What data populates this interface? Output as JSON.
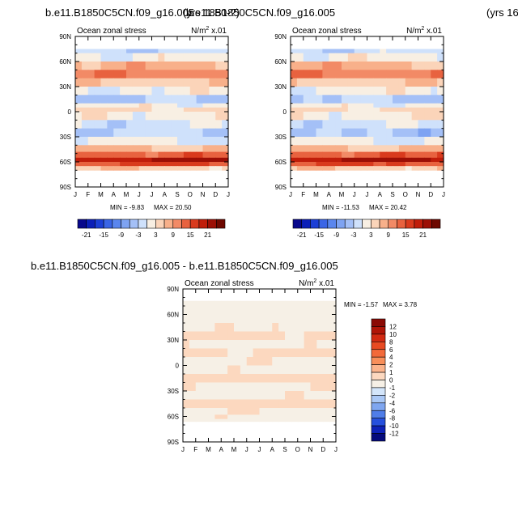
{
  "chart_data": [
    {
      "type": "heatmap",
      "title": "b.e11.B1850C5CN.f09_g16.005",
      "title_overlap": "(yrs 1850-?)",
      "subtitle_left": "Ocean zonal stress",
      "units": "N/m",
      "units_exp": "2",
      "units_scale": " x.01",
      "x_ticks": [
        "J",
        "F",
        "M",
        "A",
        "M",
        "J",
        "J",
        "A",
        "S",
        "O",
        "N",
        "D",
        "J"
      ],
      "y_ticks": [
        "90N",
        "60N",
        "30N",
        "0",
        "30S",
        "60S",
        "90S"
      ],
      "ylim": [
        -90,
        90
      ],
      "min_label": "MIN = ",
      "min": "-9.83",
      "max_label": "MAX = ",
      "max": "20.50",
      "contour_levels": [
        -24,
        -21,
        -18,
        -15,
        -12,
        -9,
        -6,
        -3,
        0,
        3,
        6,
        9,
        12,
        15,
        18,
        21,
        24
      ],
      "colorbar_labels": [
        "-21",
        "-15",
        "-9",
        "-3",
        "3",
        "9",
        "15",
        "21"
      ],
      "colors": [
        "#08088c",
        "#0b1fb8",
        "#1c3fd6",
        "#3a65e6",
        "#5a86ee",
        "#7ea3f2",
        "#a4c0f7",
        "#cfe1fb",
        "#f8efe3",
        "#fbd4b9",
        "#f8b08a",
        "#f28a66",
        "#e8623f",
        "#d93a1d",
        "#c01d0a",
        "#9c0f05",
        "#6e0800"
      ],
      "bands": [
        {
          "lat": 90,
          "value": null
        },
        {
          "lat": 80,
          "value": null
        },
        {
          "lat": 75,
          "value": -5
        },
        {
          "lat": 70,
          "value": -2
        },
        {
          "lat": 60,
          "value": 4
        },
        {
          "lat": 50,
          "value": 8
        },
        {
          "lat": 40,
          "value": 2
        },
        {
          "lat": 30,
          "value": -2
        },
        {
          "lat": 20,
          "value": -6
        },
        {
          "lat": 10,
          "value": -2
        },
        {
          "lat": 5,
          "value": 1
        },
        {
          "lat": 0,
          "value": -1
        },
        {
          "lat": -10,
          "value": -4
        },
        {
          "lat": -20,
          "value": -6
        },
        {
          "lat": -30,
          "value": -3
        },
        {
          "lat": -40,
          "value": 3
        },
        {
          "lat": -48,
          "value": 11
        },
        {
          "lat": -55,
          "value": 18
        },
        {
          "lat": -60,
          "value": 12
        },
        {
          "lat": -65,
          "value": 2
        },
        {
          "lat": -70,
          "value": null
        },
        {
          "lat": -90,
          "value": null
        }
      ]
    },
    {
      "type": "heatmap",
      "title": "b.e11.B1850C5CN.f09_g16.005",
      "title_year": "(yrs 16",
      "subtitle_left": "Ocean zonal stress",
      "units": "N/m",
      "units_exp": "2",
      "units_scale": " x.01",
      "x_ticks": [
        "J",
        "F",
        "M",
        "A",
        "M",
        "J",
        "J",
        "A",
        "S",
        "O",
        "N",
        "D",
        "J"
      ],
      "y_ticks": [
        "90N",
        "60N",
        "30N",
        "0",
        "30S",
        "60S",
        "90S"
      ],
      "ylim": [
        -90,
        90
      ],
      "min_label": "MIN = ",
      "min": "-11.53",
      "max_label": "MAX = ",
      "max": "20.42",
      "contour_levels": [
        -24,
        -21,
        -18,
        -15,
        -12,
        -9,
        -6,
        -3,
        0,
        3,
        6,
        9,
        12,
        15,
        18,
        21,
        24
      ],
      "colorbar_labels": [
        "-21",
        "-15",
        "-9",
        "-3",
        "3",
        "9",
        "15",
        "21"
      ],
      "colors": [
        "#08088c",
        "#0b1fb8",
        "#1c3fd6",
        "#3a65e6",
        "#5a86ee",
        "#7ea3f2",
        "#a4c0f7",
        "#cfe1fb",
        "#f8efe3",
        "#fbd4b9",
        "#f8b08a",
        "#f28a66",
        "#e8623f",
        "#d93a1d",
        "#c01d0a",
        "#9c0f05",
        "#6e0800"
      ],
      "bands": [
        {
          "lat": 90,
          "value": null
        },
        {
          "lat": 80,
          "value": null
        },
        {
          "lat": 75,
          "value": -5
        },
        {
          "lat": 70,
          "value": -2
        },
        {
          "lat": 60,
          "value": 4
        },
        {
          "lat": 50,
          "value": 8
        },
        {
          "lat": 40,
          "value": 2
        },
        {
          "lat": 30,
          "value": -2
        },
        {
          "lat": 20,
          "value": -6
        },
        {
          "lat": 10,
          "value": -2
        },
        {
          "lat": 5,
          "value": 1
        },
        {
          "lat": 0,
          "value": -1
        },
        {
          "lat": -10,
          "value": -4
        },
        {
          "lat": -20,
          "value": -7
        },
        {
          "lat": -30,
          "value": -3
        },
        {
          "lat": -40,
          "value": 3
        },
        {
          "lat": -48,
          "value": 11
        },
        {
          "lat": -55,
          "value": 18
        },
        {
          "lat": -60,
          "value": 12
        },
        {
          "lat": -65,
          "value": 2
        },
        {
          "lat": -70,
          "value": null
        },
        {
          "lat": -90,
          "value": null
        }
      ]
    },
    {
      "type": "heatmap",
      "title": "b.e11.B1850C5CN.f09_g16.005 - b.e11.B1850C5CN.f09_g16.005",
      "subtitle_left": "Ocean zonal stress",
      "units": "N/m",
      "units_exp": "2",
      "units_scale": " x.01",
      "x_ticks": [
        "J",
        "F",
        "M",
        "A",
        "M",
        "J",
        "J",
        "A",
        "S",
        "O",
        "N",
        "D",
        "J"
      ],
      "y_ticks": [
        "90N",
        "60N",
        "30N",
        "0",
        "30S",
        "60S",
        "90S"
      ],
      "ylim": [
        -90,
        90
      ],
      "min_label": "MIN = ",
      "min": "-1.57",
      "max_label": "MAX = ",
      "max": "3.78",
      "contour_levels": [
        -12,
        -10,
        -8,
        -6,
        -4,
        -2,
        -1,
        0,
        1,
        2,
        4,
        6,
        8,
        10,
        12
      ],
      "colorbar_labels": [
        "12",
        "10",
        "8",
        "6",
        "4",
        "2",
        "1",
        "0",
        "-1",
        "-2",
        "-4",
        "-6",
        "-8",
        "-10",
        "-12"
      ],
      "colors": [
        "#8b0a05",
        "#b01508",
        "#d22a12",
        "#e84a22",
        "#f26a3a",
        "#f88f5a",
        "#fbb48c",
        "#fcd8bf",
        "#f6f0e6",
        "#d3e5fa",
        "#aac8f6",
        "#7fa6f0",
        "#4f7de8",
        "#2650dd",
        "#0e22b8",
        "#050a7c"
      ],
      "bands": [
        {
          "lat": 90,
          "value": null
        },
        {
          "lat": 80,
          "value": null
        },
        {
          "lat": 76,
          "value": 0.6
        },
        {
          "lat": 70,
          "value": 0.4
        },
        {
          "lat": 60,
          "value": 0.3
        },
        {
          "lat": 50,
          "value": 0.2
        },
        {
          "lat": 40,
          "value": -0.3
        },
        {
          "lat": 30,
          "value": 0.2
        },
        {
          "lat": 20,
          "value": -0.2
        },
        {
          "lat": 10,
          "value": 0.2
        },
        {
          "lat": 0,
          "value": 0.3
        },
        {
          "lat": -10,
          "value": -0.3
        },
        {
          "lat": -20,
          "value": 0.2
        },
        {
          "lat": -30,
          "value": 0.3
        },
        {
          "lat": -40,
          "value": -0.3
        },
        {
          "lat": -50,
          "value": 0.2
        },
        {
          "lat": -58,
          "value": 0.3
        },
        {
          "lat": -63,
          "value": 0.6
        },
        {
          "lat": -66,
          "value": null
        },
        {
          "lat": -90,
          "value": null
        }
      ]
    }
  ]
}
